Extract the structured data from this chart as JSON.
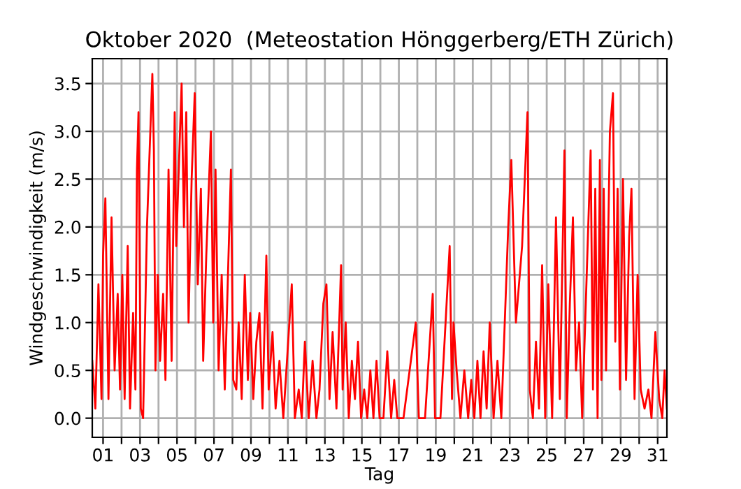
{
  "chart_data": {
    "type": "line",
    "title": "Oktober 2020  (Meteostation Hönggerberg/ETH Zürich)",
    "xlabel": "Tag",
    "ylabel": "Windgeschwindigkeit (m/s)",
    "xlim": [
      "2020-09-30T10:00",
      "2020-10-31T12:00"
    ],
    "xticks": [
      {
        "value": "2020-10-01",
        "label": "01"
      },
      {
        "value": "2020-10-02",
        "label": null
      },
      {
        "value": "2020-10-03",
        "label": "03"
      },
      {
        "value": "2020-10-04",
        "label": null
      },
      {
        "value": "2020-10-05",
        "label": "05"
      },
      {
        "value": "2020-10-06",
        "label": null
      },
      {
        "value": "2020-10-07",
        "label": "07"
      },
      {
        "value": "2020-10-08",
        "label": null
      },
      {
        "value": "2020-10-09",
        "label": "09"
      },
      {
        "value": "2020-10-10",
        "label": null
      },
      {
        "value": "2020-10-11",
        "label": "11"
      },
      {
        "value": "2020-10-12",
        "label": null
      },
      {
        "value": "2020-10-13",
        "label": "13"
      },
      {
        "value": "2020-10-14",
        "label": null
      },
      {
        "value": "2020-10-15",
        "label": "15"
      },
      {
        "value": "2020-10-16",
        "label": null
      },
      {
        "value": "2020-10-17",
        "label": "17"
      },
      {
        "value": "2020-10-18",
        "label": null
      },
      {
        "value": "2020-10-19",
        "label": "19"
      },
      {
        "value": "2020-10-20",
        "label": null
      },
      {
        "value": "2020-10-21",
        "label": "21"
      },
      {
        "value": "2020-10-22",
        "label": null
      },
      {
        "value": "2020-10-23",
        "label": "23"
      },
      {
        "value": "2020-10-24",
        "label": null
      },
      {
        "value": "2020-10-25",
        "label": "25"
      },
      {
        "value": "2020-10-26",
        "label": null
      },
      {
        "value": "2020-10-27",
        "label": "27"
      },
      {
        "value": "2020-10-28",
        "label": null
      },
      {
        "value": "2020-10-29",
        "label": "29"
      },
      {
        "value": "2020-10-30",
        "label": null
      },
      {
        "value": "2020-10-31",
        "label": "31"
      }
    ],
    "ylim": [
      -0.2,
      3.76
    ],
    "yticks": [
      {
        "value": 0,
        "label": "0.0"
      },
      {
        "value": 0.5,
        "label": "0.5"
      },
      {
        "value": 1,
        "label": "1.0"
      },
      {
        "value": 1.5,
        "label": "1.5"
      },
      {
        "value": 2,
        "label": "2.0"
      },
      {
        "value": 2.5,
        "label": "2.5"
      },
      {
        "value": 3,
        "label": "3.0"
      },
      {
        "value": 3.5,
        "label": "3.5"
      }
    ],
    "grid": true,
    "series": [
      {
        "color": "#ff0000",
        "x": [
          "2020-09-30T10:00",
          "2020-09-30T14:00",
          "2020-09-30T18:00",
          "2020-09-30T22:00",
          "2020-10-01T00:00",
          "2020-10-01T03:00",
          "2020-10-01T07:00",
          "2020-10-01T11:00",
          "2020-10-01T15:00",
          "2020-10-01T19:00",
          "2020-10-01T22:00",
          "2020-10-02T01:00",
          "2020-10-02T04:00",
          "2020-10-02T08:00",
          "2020-10-02T11:00",
          "2020-10-02T15:00",
          "2020-10-02T18:00",
          "2020-10-02T20:00",
          "2020-10-02T22:00",
          "2020-10-03T01:00",
          "2020-10-03T04:00",
          "2020-10-03T09:00",
          "2020-10-03T16:00",
          "2020-10-03T18:00",
          "2020-10-03T20:00",
          "2020-10-03T23:00",
          "2020-10-04T02:00",
          "2020-10-04T06:00",
          "2020-10-04T09:00",
          "2020-10-04T13:00",
          "2020-10-04T17:00",
          "2020-10-04T21:00",
          "2020-10-04T23:00",
          "2020-10-05T06:00",
          "2020-10-05T09:00",
          "2020-10-05T12:00",
          "2020-10-05T15:00",
          "2020-10-05T19:00",
          "2020-10-05T23:00",
          "2020-10-06T03:00",
          "2020-10-06T07:00",
          "2020-10-06T10:00",
          "2020-10-06T14:00",
          "2020-10-06T20:00",
          "2020-10-06T23:00",
          "2020-10-07T02:00",
          "2020-10-07T06:00",
          "2020-10-07T10:00",
          "2020-10-07T14:00",
          "2020-10-07T22:00",
          "2020-10-08T01:00",
          "2020-10-08T05:00",
          "2020-10-08T08:00",
          "2020-10-08T12:00",
          "2020-10-08T16:00",
          "2020-10-08T20:00",
          "2020-10-08T23:00",
          "2020-10-09T03:00",
          "2020-10-09T07:00",
          "2020-10-09T11:00",
          "2020-10-09T15:00",
          "2020-10-09T20:00",
          "2020-10-09T23:00",
          "2020-10-10T04:00",
          "2020-10-10T08:00",
          "2020-10-10T13:00",
          "2020-10-10T18:00",
          "2020-10-10T22:00",
          "2020-10-11T05:00",
          "2020-10-11T09:00",
          "2020-10-11T14:00",
          "2020-10-11T18:00",
          "2020-10-11T22:00",
          "2020-10-12T03:00",
          "2020-10-12T08:00",
          "2020-10-12T13:00",
          "2020-10-12T17:00",
          "2020-10-12T22:00",
          "2020-10-13T02:00",
          "2020-10-13T06:00",
          "2020-10-13T10:00",
          "2020-10-13T15:00",
          "2020-10-13T21:00",
          "2020-10-13T23:00",
          "2020-10-14T03:00",
          "2020-10-14T07:00",
          "2020-10-14T11:00",
          "2020-10-14T15:00",
          "2020-10-14T19:00",
          "2020-10-14T23:00",
          "2020-10-15T03:00",
          "2020-10-15T07:00",
          "2020-10-15T11:00",
          "2020-10-15T15:00",
          "2020-10-15T19:00",
          "2020-10-15T23:00",
          "2020-10-16T04:00",
          "2020-10-16T09:00",
          "2020-10-16T14:00",
          "2020-10-16T18:00",
          "2020-10-16T22:00",
          "2020-10-17T06:00",
          "2020-10-17T22:00",
          "2020-10-18T02:00",
          "2020-10-18T10:00",
          "2020-10-18T20:00",
          "2020-10-18T23:00",
          "2020-10-19T06:00",
          "2020-10-19T18:00",
          "2020-10-19T21:00",
          "2020-10-19T23:00",
          "2020-10-20T03:00",
          "2020-10-20T08:00",
          "2020-10-20T13:00",
          "2020-10-20T18:00",
          "2020-10-20T22:00",
          "2020-10-21T02:00",
          "2020-10-21T06:00",
          "2020-10-21T10:00",
          "2020-10-21T14:00",
          "2020-10-21T18:00",
          "2020-10-21T22:00",
          "2020-10-22T03:00",
          "2020-10-22T08:00",
          "2020-10-22T13:00",
          "2020-10-22T22:00",
          "2020-10-23T02:00",
          "2020-10-23T08:00",
          "2020-10-23T16:00",
          "2020-10-23T23:00",
          "2020-10-24T02:00",
          "2020-10-24T06:00",
          "2020-10-24T10:00",
          "2020-10-24T14:00",
          "2020-10-24T18:00",
          "2020-10-24T22:00",
          "2020-10-25T02:00",
          "2020-10-25T07:00",
          "2020-10-25T12:00",
          "2020-10-25T17:00",
          "2020-10-25T23:00",
          "2020-10-26T02:00",
          "2020-10-26T06:00",
          "2020-10-26T10:00",
          "2020-10-26T14:00",
          "2020-10-26T18:00",
          "2020-10-26T22:00",
          "2020-10-27T09:00",
          "2020-10-27T12:00",
          "2020-10-27T15:00",
          "2020-10-27T18:00",
          "2020-10-27T21:00",
          "2020-10-27T23:00",
          "2020-10-28T02:00",
          "2020-10-28T05:00",
          "2020-10-28T10:00",
          "2020-10-28T14:00",
          "2020-10-28T17:00",
          "2020-10-28T20:00",
          "2020-10-28T23:00",
          "2020-10-29T03:00",
          "2020-10-29T07:00",
          "2020-10-29T11:00",
          "2020-10-29T14:00",
          "2020-10-29T18:00",
          "2020-10-29T22:00",
          "2020-10-30T02:00",
          "2020-10-30T07:00",
          "2020-10-30T12:00",
          "2020-10-30T16:00",
          "2020-10-30T21:00",
          "2020-10-31T02:00",
          "2020-10-31T06:00",
          "2020-10-31T09:00",
          "2020-10-31T12:00"
        ],
        "values": [
          0.6,
          0.1,
          1.4,
          0.2,
          1.7,
          2.3,
          0.2,
          2.1,
          0.5,
          1.3,
          0.3,
          1.5,
          0.2,
          1.8,
          0.1,
          1.1,
          0.3,
          2.6,
          3.2,
          0.1,
          0.0,
          2.0,
          3.6,
          2.8,
          0.5,
          1.5,
          0.6,
          1.3,
          0.4,
          2.6,
          0.6,
          3.2,
          1.8,
          3.5,
          2.0,
          3.2,
          1.0,
          2.5,
          3.4,
          1.4,
          2.4,
          0.6,
          1.7,
          3.0,
          1.0,
          2.6,
          0.5,
          1.5,
          0.3,
          2.6,
          0.4,
          0.3,
          1.0,
          0.2,
          1.5,
          0.4,
          1.1,
          0.2,
          0.8,
          1.1,
          0.1,
          1.7,
          0.3,
          0.9,
          0.1,
          0.6,
          0.0,
          0.5,
          1.4,
          0.0,
          0.3,
          0.0,
          0.8,
          0.0,
          0.6,
          0.0,
          0.3,
          1.2,
          1.4,
          0.2,
          0.9,
          0.1,
          1.6,
          0.3,
          1.0,
          0.0,
          0.6,
          0.2,
          0.8,
          0.0,
          0.3,
          0.0,
          0.5,
          0.0,
          0.6,
          0.0,
          0.0,
          0.7,
          0.0,
          0.4,
          0.0,
          0.0,
          1.0,
          0.0,
          0.0,
          1.3,
          0.0,
          0.0,
          1.8,
          0.2,
          1.0,
          0.5,
          0.0,
          0.5,
          0.0,
          0.4,
          0.0,
          0.6,
          0.0,
          0.7,
          0.1,
          1.0,
          0.0,
          0.6,
          0.0,
          2.0,
          2.7,
          1.0,
          1.8,
          3.2,
          0.3,
          0.0,
          0.8,
          0.1,
          1.6,
          0.0,
          1.4,
          0.0,
          2.1,
          0.2,
          2.8,
          0.0,
          1.2,
          2.1,
          0.5,
          1.0,
          0.0,
          2.8,
          0.3,
          2.4,
          0.0,
          2.7,
          0.4,
          2.4,
          0.5,
          3.0,
          3.4,
          0.8,
          2.4,
          0.3,
          2.5,
          0.4,
          1.9,
          2.4,
          0.2,
          1.5,
          0.3,
          0.1,
          0.3,
          0.0,
          0.9,
          0.2,
          0.0,
          0.5,
          0.1
        ]
      }
    ]
  }
}
